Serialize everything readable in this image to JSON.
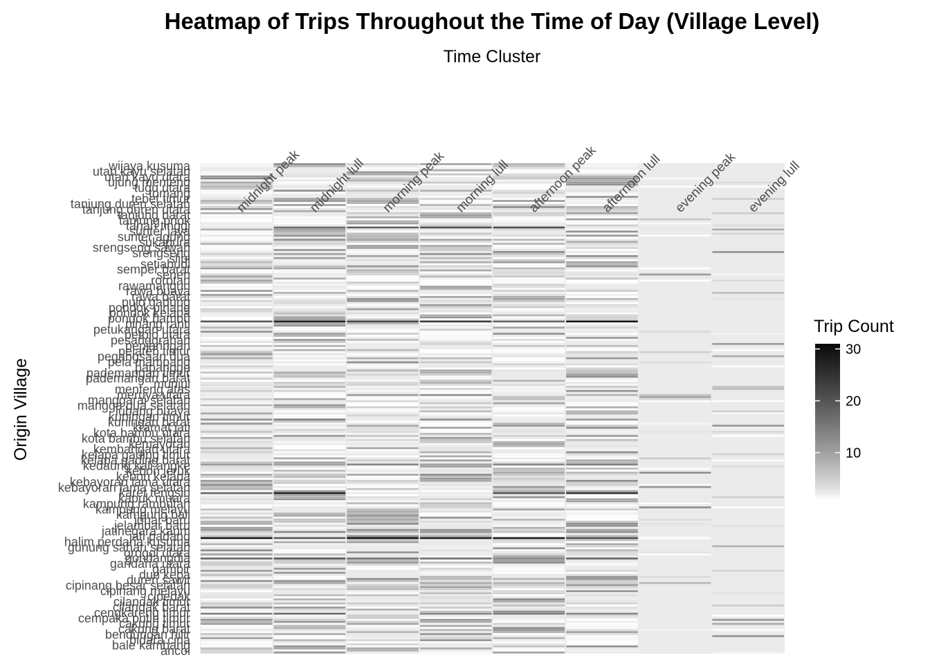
{
  "chart_data": {
    "type": "heatmap",
    "title": "Heatmap of Trips Throughout the Time of Day (Village Level)",
    "xlabel": "Time Cluster",
    "ylabel": "Origin Village",
    "x_position": "top",
    "grid": false,
    "legend": {
      "title": "Trip Count",
      "placement": "right",
      "ticks": [
        10,
        20,
        30
      ],
      "range": [
        1,
        31
      ],
      "color_low": "#ffffff",
      "color_high": "#0a0a0a"
    },
    "panel_background": "#ebebeb",
    "categories": [
      "midnight peak",
      "midnight lull",
      "morning peak",
      "morning lull",
      "afternoon peak",
      "afternoon lull",
      "evening peak",
      "evening lull"
    ],
    "villages": [
      "wijaya kusuma",
      "utan kayu selatan",
      "utan kayu utara",
      "ujung menteng",
      "tugu utara",
      "tomang",
      "tebet timur",
      "tanjung duren selatan",
      "tanjung duren utara",
      "tanjung barat",
      "tanjung priok",
      "tanah tinggi",
      "sunter jaya",
      "sunter agung",
      "sukapura",
      "srengseng sawah",
      "srengseng",
      "slipi",
      "setiabudi",
      "semper barat",
      "senen",
      "rorotan",
      "rawamangun",
      "rawa buaya",
      "rawa barat",
      "pulo gadung",
      "pondok pinang",
      "pondok kelapa",
      "pondok bambu",
      "pinang ranti",
      "petukangan utara",
      "petojo utara",
      "pesanggrahan",
      "penjaringan",
      "pejaten timur",
      "pegangsaan dua",
      "pela mampang",
      "papanggo",
      "pademangan timur",
      "pademangan barat",
      "munjul",
      "menteng atas",
      "meruya utara",
      "manggarai selatan",
      "mangga dua selatan",
      "lubang buaya",
      "kuningan timur",
      "kuningan barat",
      "kramat jati",
      "kota bambu utara",
      "kota bambu selatan",
      "kemayoran",
      "kembangan utara",
      "kelapa gading timur",
      "kelapa gading barat",
      "kedaung kali angke",
      "kebon jeruk",
      "kebon kelapa",
      "kebayoran lama utara",
      "kebayoran lama selatan",
      "karet tengsin",
      "kapuk muara",
      "kampung rambutan",
      "kampung melayu",
      "kampung bali",
      "johar baru",
      "jelambar baru",
      "jatinegara kaum",
      "jati padang",
      "halim perdana kusuma",
      "gunung sahari selatan",
      "grogol utara",
      "gondangdia",
      "gandaria utara",
      "gambir",
      "duri kepa",
      "duren sawit",
      "cipinang besar selatan",
      "cipinang melayu",
      "cipedak",
      "cilandak timur",
      "cilandak barat",
      "cengkareng timur",
      "cempaka putih timur",
      "cakung timur",
      "cakung barat",
      "bendungan hilir",
      "bidara cina",
      "bale kambang",
      "ancol"
    ]
  }
}
